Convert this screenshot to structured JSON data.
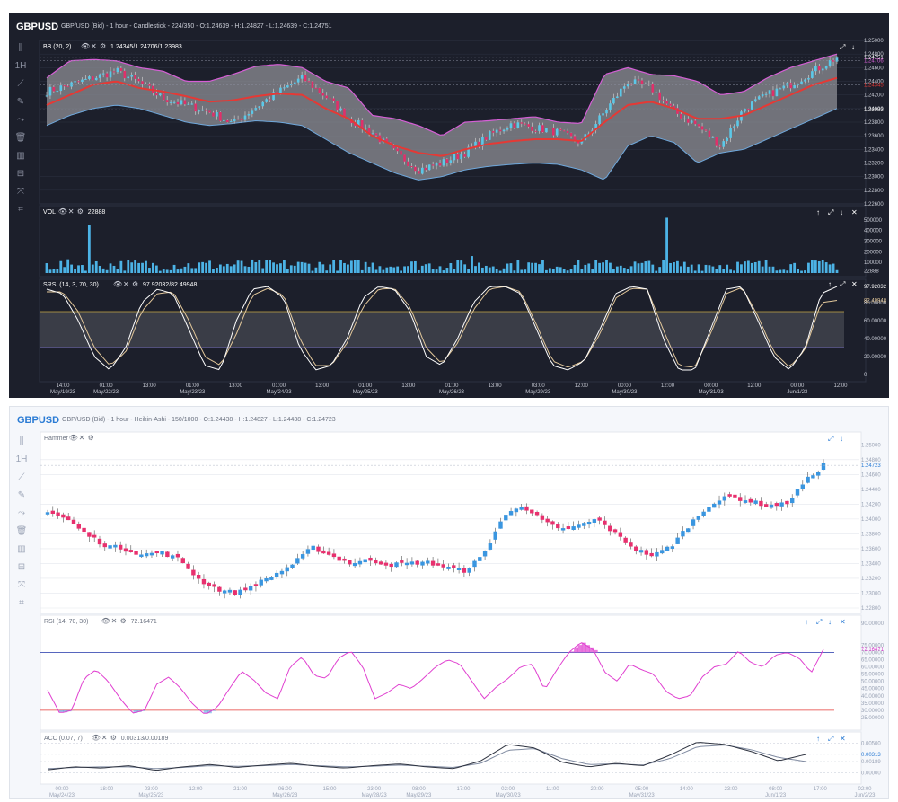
{
  "top_window": {
    "symbol": "GBPUSD",
    "info": "GBP/USD (Bid) - 1 hour - Candlestick - 224/350 - O:1.24639 - H:1.24827 - L:1.24639 - C:1.24751",
    "tool_icons": [
      "chart-type-icon",
      "timeframe-icon",
      "trendline-icon",
      "pencil-icon",
      "pattern-icon",
      "trash-icon",
      "indicator-icon",
      "layout-icon",
      "fullscreen-icon",
      "crosshair-icon"
    ],
    "tool_glyphs": [
      "⫼",
      "1H",
      "⟋",
      "✎",
      "⤳",
      "🗑",
      "▥",
      "⊟",
      "⤧",
      "⌗"
    ]
  },
  "bottom_window": {
    "symbol": "GBPUSD",
    "info": "GBP/USD (Bid) - 1 hour - Heikin-Ashi - 150/1000 - O:1.24438 - H:1.24827 - L:1.24438 - C:1.24723",
    "tool_icons": [
      "chart-type-icon",
      "timeframe-icon",
      "trendline-icon",
      "pencil-icon",
      "pattern-icon",
      "trash-icon",
      "indicator-icon",
      "layout-icon",
      "fullscreen-icon",
      "crosshair-icon"
    ],
    "tool_glyphs": [
      "⫼",
      "1H",
      "⟋",
      "✎",
      "⤳",
      "🗑",
      "▥",
      "⊟",
      "⤧",
      "⌗"
    ]
  },
  "chart_data": [
    {
      "type": "candlestick",
      "title": "BB (20, 2)",
      "legend_value": "1.24345/1.24706/1.23983",
      "y_ticks": [
        "1.25000",
        "1.24800",
        "1.24600",
        "1.24400",
        "1.24200",
        "1.24000",
        "1.23800",
        "1.23600",
        "1.23400",
        "1.23200",
        "1.23000",
        "1.22800",
        "1.22600"
      ],
      "ylim": [
        1.226,
        1.25
      ],
      "price_labels": [
        {
          "text": "1.24751",
          "value": 1.24751,
          "color": "#ffffff"
        },
        {
          "text": "1.24706",
          "value": 1.24706,
          "color": "#d65fd6"
        },
        {
          "text": "1.24345",
          "value": 1.24345,
          "color": "#e53935"
        },
        {
          "text": "1.23983",
          "value": 1.23983,
          "color": "#ffffff"
        }
      ],
      "x_ticks": [
        {
          "time": "14:00",
          "date": "May/19/23"
        },
        {
          "time": "01:00",
          "date": "May/22/23"
        },
        {
          "time": "13:00",
          "date": ""
        },
        {
          "time": "01:00",
          "date": "May/23/23"
        },
        {
          "time": "13:00",
          "date": ""
        },
        {
          "time": "01:00",
          "date": "May/24/23"
        },
        {
          "time": "13:00",
          "date": ""
        },
        {
          "time": "01:00",
          "date": "May/25/23"
        },
        {
          "time": "13:00",
          "date": ""
        },
        {
          "time": "01:00",
          "date": "May/26/23"
        },
        {
          "time": "13:00",
          "date": ""
        },
        {
          "time": "03:00",
          "date": "May/29/23"
        },
        {
          "time": "12:00",
          "date": ""
        },
        {
          "time": "00:00",
          "date": "May/30/23"
        },
        {
          "time": "12:00",
          "date": ""
        },
        {
          "time": "00:00",
          "date": "May/31/23"
        },
        {
          "time": "12:00",
          "date": ""
        },
        {
          "time": "00:00",
          "date": "Jun/1/23"
        },
        {
          "time": "12:00",
          "date": ""
        }
      ],
      "close_anchors": [
        1.2425,
        1.2435,
        1.2445,
        1.2455,
        1.2438,
        1.2415,
        1.2405,
        1.2395,
        1.2378,
        1.2402,
        1.2425,
        1.2445,
        1.2418,
        1.2385,
        1.2365,
        1.2335,
        1.231,
        1.232,
        1.2335,
        1.236,
        1.2378,
        1.2372,
        1.2365,
        1.235,
        1.2395,
        1.244,
        1.243,
        1.2395,
        1.2375,
        1.2345,
        1.24,
        1.242,
        1.2435,
        1.2455,
        1.2475
      ],
      "bollinger": {
        "upper_anchors": [
          1.2445,
          1.247,
          1.2472,
          1.247,
          1.246,
          1.2455,
          1.244,
          1.244,
          1.245,
          1.2462,
          1.2465,
          1.246,
          1.244,
          1.243,
          1.239,
          1.2385,
          1.2375,
          1.236,
          1.238,
          1.2382,
          1.2385,
          1.2388,
          1.238,
          1.2378,
          1.245,
          1.246,
          1.245,
          1.2448,
          1.244,
          1.242,
          1.2425,
          1.2445,
          1.246,
          1.247,
          1.248
        ],
        "mid_anchors": [
          1.2405,
          1.242,
          1.2435,
          1.244,
          1.243,
          1.2425,
          1.2418,
          1.241,
          1.2412,
          1.2418,
          1.2422,
          1.242,
          1.24,
          1.2385,
          1.236,
          1.2345,
          1.2335,
          1.233,
          1.234,
          1.2348,
          1.2352,
          1.2355,
          1.2355,
          1.2352,
          1.238,
          1.2405,
          1.241,
          1.24,
          1.2385,
          1.2385,
          1.239,
          1.2405,
          1.242,
          1.2435,
          1.2445
        ],
        "lower_anchors": [
          1.2375,
          1.239,
          1.24,
          1.2405,
          1.24,
          1.239,
          1.238,
          1.2375,
          1.2378,
          1.2382,
          1.238,
          1.2375,
          1.2355,
          1.2335,
          1.232,
          1.2305,
          1.2295,
          1.23,
          1.231,
          1.2315,
          1.2318,
          1.232,
          1.2318,
          1.231,
          1.2295,
          1.2345,
          1.236,
          1.235,
          1.232,
          1.2335,
          1.234,
          1.2355,
          1.237,
          1.2385,
          1.24
        ]
      },
      "volume": {
        "title": "VOL",
        "legend_value": "22888",
        "y_ticks": [
          "500000",
          "400000",
          "300000",
          "200000",
          "100000",
          "22888"
        ],
        "ylim": [
          0,
          600000
        ],
        "spikes": [
          {
            "index": 12,
            "value": 450000
          },
          {
            "index": 175,
            "value": 520000
          },
          {
            "index": 120,
            "value": 160000
          }
        ]
      },
      "srsi": {
        "title": "SRSI (14, 3, 70, 30)",
        "legend_value": "97.92032/82.49948",
        "y_ticks": [
          "80.00000",
          "60.00000",
          "40.00000",
          "20.00000",
          "0"
        ],
        "levels": [
          70,
          30
        ],
        "ylim": [
          0,
          100
        ],
        "k_anchors": [
          95,
          90,
          60,
          20,
          5,
          30,
          80,
          95,
          90,
          50,
          10,
          5,
          60,
          95,
          98,
          85,
          30,
          5,
          10,
          40,
          85,
          98,
          95,
          70,
          20,
          10,
          40,
          80,
          98,
          98,
          90,
          50,
          10,
          5,
          15,
          50,
          90,
          98,
          95,
          40,
          5,
          5,
          50,
          95,
          98,
          60,
          20,
          5,
          30,
          90,
          97.9
        ],
        "d_anchors": [
          92,
          92,
          70,
          30,
          10,
          25,
          70,
          90,
          92,
          60,
          20,
          10,
          45,
          88,
          96,
          88,
          40,
          10,
          10,
          35,
          75,
          95,
          96,
          75,
          30,
          12,
          35,
          72,
          95,
          98,
          92,
          55,
          15,
          8,
          15,
          45,
          85,
          96,
          95,
          50,
          10,
          8,
          45,
          90,
          97,
          65,
          25,
          8,
          28,
          80,
          82.5
        ]
      }
    },
    {
      "type": "heikin-ashi",
      "title": "Hammer",
      "y_ticks": [
        "1.25000",
        "1.24800",
        "1.24600",
        "1.24400",
        "1.24200",
        "1.24000",
        "1.23800",
        "1.23600",
        "1.23400",
        "1.23200",
        "1.23000",
        "1.22800"
      ],
      "ylim": [
        1.228,
        1.251
      ],
      "price_labels": [
        {
          "text": "1.24723",
          "value": 1.24723,
          "color": "#2a7bd4"
        }
      ],
      "x_ticks": [
        {
          "time": "00:00",
          "date": "May/24/23"
        },
        {
          "time": "18:00",
          "date": ""
        },
        {
          "time": "03:00",
          "date": "May/25/23"
        },
        {
          "time": "12:00",
          "date": ""
        },
        {
          "time": "21:00",
          "date": ""
        },
        {
          "time": "06:00",
          "date": "May/26/23"
        },
        {
          "time": "15:00",
          "date": ""
        },
        {
          "time": "23:00",
          "date": "May/28/23"
        },
        {
          "time": "08:00",
          "date": "May/29/23"
        },
        {
          "time": "17:00",
          "date": ""
        },
        {
          "time": "02:00",
          "date": "May/30/23"
        },
        {
          "time": "11:00",
          "date": ""
        },
        {
          "time": "20:00",
          "date": ""
        },
        {
          "time": "05:00",
          "date": "May/31/23"
        },
        {
          "time": "14:00",
          "date": ""
        },
        {
          "time": "23:00",
          "date": ""
        },
        {
          "time": "08:00",
          "date": "Jun/1/23"
        },
        {
          "time": "17:00",
          "date": ""
        },
        {
          "time": "02:00",
          "date": "Jun/2/23"
        }
      ],
      "close_anchors": [
        1.241,
        1.24,
        1.238,
        1.2365,
        1.236,
        1.2352,
        1.2355,
        1.2345,
        1.2318,
        1.2305,
        1.23,
        1.2312,
        1.2325,
        1.234,
        1.2362,
        1.235,
        1.234,
        1.2345,
        1.2338,
        1.234,
        1.2342,
        1.2335,
        1.233,
        1.235,
        1.24,
        1.242,
        1.24,
        1.2385,
        1.239,
        1.24,
        1.238,
        1.236,
        1.235,
        1.2365,
        1.2395,
        1.242,
        1.243,
        1.2425,
        1.2418,
        1.242,
        1.245,
        1.2473
      ],
      "rsi": {
        "title": "RSI (14, 70, 30)",
        "legend_value": "72.16471",
        "y_ticks": [
          "90.00000",
          "75.00000",
          "70.00000",
          "65.00000",
          "60.00000",
          "55.00000",
          "50.00000",
          "45.00000",
          "40.00000",
          "35.00000",
          "30.00000",
          "25.00000"
        ],
        "levels": [
          70,
          30
        ],
        "ylim": [
          20,
          92
        ],
        "anchors": [
          44,
          28,
          30,
          52,
          58,
          50,
          38,
          28,
          30,
          48,
          53,
          45,
          34,
          27,
          32,
          45,
          57,
          51,
          42,
          38,
          60,
          67,
          54,
          52,
          66,
          71,
          60,
          38,
          42,
          48,
          45,
          52,
          60,
          65,
          62,
          50,
          38,
          46,
          52,
          60,
          62,
          44,
          58,
          70,
          77,
          72,
          56,
          50,
          62,
          58,
          55,
          43,
          38,
          40,
          53,
          60,
          62,
          71,
          63,
          60,
          68,
          70,
          66,
          56,
          72.2
        ]
      },
      "acc": {
        "title": "ACC (0.07, 7)",
        "legend_value": "0.00313/0.00189",
        "y_ticks": [
          "0.00500",
          "0.00313",
          "0.00189",
          "0.00000"
        ],
        "ylim": [
          -0.001,
          0.006
        ],
        "line1_anchors": [
          0.0005,
          0.001,
          0.0008,
          0.0012,
          0.0004,
          0.001,
          0.0014,
          0.0009,
          0.0013,
          0.0016,
          0.0011,
          0.0008,
          0.0012,
          0.0015,
          0.001,
          0.0007,
          0.002,
          0.0048,
          0.0042,
          0.0018,
          0.001,
          0.0016,
          0.0012,
          0.003,
          0.0052,
          0.0048,
          0.0036,
          0.002,
          0.0031
        ],
        "line2_anchors": [
          0.0007,
          0.0009,
          0.001,
          0.001,
          0.0007,
          0.0009,
          0.0012,
          0.0011,
          0.0012,
          0.0014,
          0.0012,
          0.001,
          0.0011,
          0.0013,
          0.0011,
          0.0009,
          0.0016,
          0.0038,
          0.0041,
          0.0024,
          0.0014,
          0.0015,
          0.0013,
          0.0024,
          0.0044,
          0.0047,
          0.0039,
          0.0026,
          0.0019
        ]
      }
    }
  ]
}
